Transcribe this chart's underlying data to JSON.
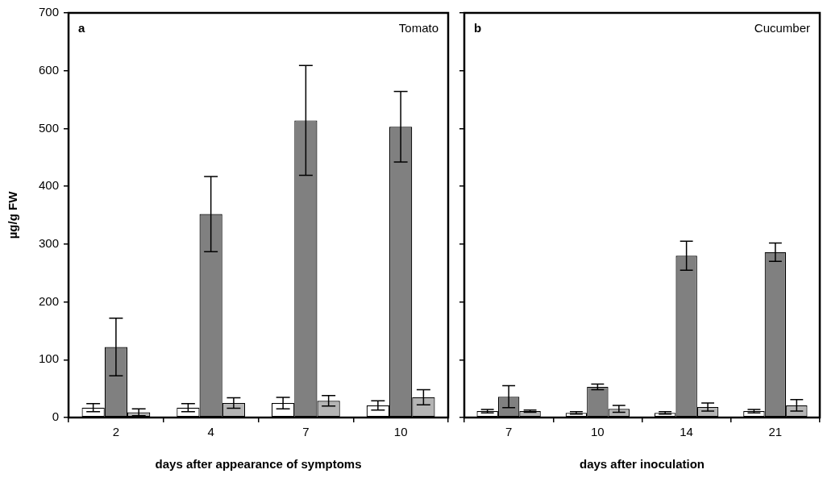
{
  "chart_data": [
    {
      "type": "bar",
      "xlabel": "days after appearance of symptoms",
      "ylabel": "µg/g FW",
      "annotations": [
        "a",
        "Tomato"
      ],
      "categories": [
        "2",
        "4",
        "7",
        "10"
      ],
      "ylim": [
        0,
        700
      ],
      "yticks": [
        0,
        100,
        200,
        300,
        400,
        500,
        600,
        700
      ],
      "grid": false,
      "legend": false,
      "series": [
        {
          "color": "#ffffff",
          "values": [
            17,
            17,
            25,
            21
          ],
          "errors": [
            7,
            7,
            10,
            8
          ]
        },
        {
          "color": "#808080",
          "values": [
            122,
            352,
            514,
            503
          ],
          "errors": [
            50,
            65,
            95,
            61
          ]
        },
        {
          "color": "#b4b4b4",
          "values": [
            9,
            25,
            29,
            35
          ],
          "errors": [
            6,
            9,
            9,
            13
          ]
        }
      ]
    },
    {
      "type": "bar",
      "xlabel": "days after inoculation",
      "annotations": [
        "b",
        "Cucumber"
      ],
      "categories": [
        "7",
        "10",
        "14",
        "21"
      ],
      "ylim": [
        0,
        700
      ],
      "yticks": [
        0,
        100,
        200,
        300,
        400,
        500,
        600,
        700
      ],
      "tick_labels": "x",
      "grid": false,
      "legend": false,
      "series": [
        {
          "color": "#ffffff",
          "values": [
            11,
            8,
            8,
            11
          ],
          "errors": [
            3,
            2,
            2,
            3
          ]
        },
        {
          "color": "#808080",
          "values": [
            36,
            53,
            280,
            286
          ],
          "errors": [
            19,
            5,
            25,
            16
          ]
        },
        {
          "color": "#b4b4b4",
          "values": [
            11,
            15,
            18,
            21
          ],
          "errors": [
            2,
            6,
            7,
            10
          ]
        }
      ]
    }
  ]
}
